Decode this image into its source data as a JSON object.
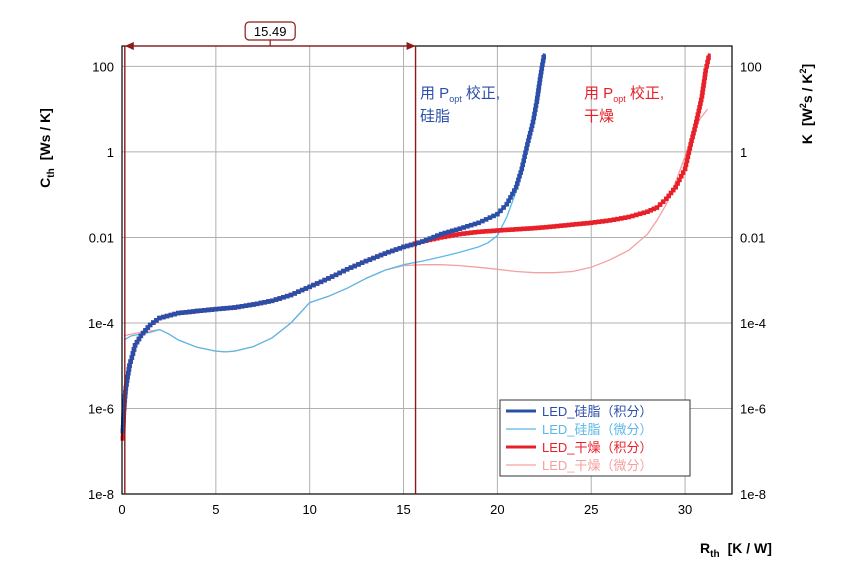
{
  "chart_data": {
    "type": "line",
    "title": "",
    "xlabel": {
      "main": "R",
      "sub": "th",
      "unit": "[K / W]"
    },
    "ylabel_left": {
      "main": "C",
      "sub": "th",
      "unit": "[Ws / K]"
    },
    "ylabel_right": {
      "main": "K",
      "unit_pre": "[W",
      "sup1": "2",
      "mid": "s / K",
      "sup2": "2",
      "post": "]"
    },
    "xlim": [
      0,
      32.5
    ],
    "ylim": [
      1e-08,
      300
    ],
    "y_scale": "log",
    "grid": true,
    "x_ticks": [
      "0",
      "5",
      "10",
      "15",
      "20",
      "25",
      "30"
    ],
    "x_tick_values": [
      0,
      5,
      10,
      15,
      20,
      25,
      30
    ],
    "y_ticks": [
      "1e-8",
      "1e-6",
      "1e-4",
      "0.01",
      "1",
      "100"
    ],
    "y_tick_values": [
      1e-08,
      1e-06,
      0.0001,
      0.01,
      1,
      100
    ],
    "legend_position": "bottom-right",
    "series": [
      {
        "name": "LED_硅脂（积分）",
        "color": "#2b4fa8",
        "style": "thick-markers",
        "x": [
          0.05,
          0.1,
          0.2,
          0.4,
          0.7,
          1.0,
          1.5,
          2.0,
          3.0,
          4.0,
          5.0,
          6.0,
          7.0,
          8.0,
          9.0,
          10.0,
          11.0,
          12.0,
          13.0,
          14.0,
          15.0,
          15.6,
          16.0,
          17.0,
          18.0,
          19.0,
          20.0,
          20.5,
          21.0,
          21.3,
          21.6,
          21.9,
          22.1,
          22.3,
          22.5
        ],
        "y": [
          3e-07,
          1e-06,
          3e-06,
          1e-05,
          3e-05,
          5e-05,
          9e-05,
          0.00013,
          0.00017,
          0.00019,
          0.00021,
          0.00023,
          0.00027,
          0.00033,
          0.00045,
          0.0007,
          0.0011,
          0.0018,
          0.0028,
          0.0042,
          0.006,
          0.007,
          0.008,
          0.012,
          0.016,
          0.022,
          0.035,
          0.06,
          0.15,
          0.4,
          1.5,
          5,
          15,
          60,
          200
        ]
      },
      {
        "name": "LED_硅脂（微分）",
        "color": "#5bb8e8",
        "style": "thin",
        "x": [
          0.1,
          0.5,
          1.0,
          1.5,
          2.0,
          2.5,
          3.0,
          4.0,
          5.0,
          5.5,
          6.0,
          7.0,
          8.0,
          9.0,
          10.0,
          11.0,
          12.0,
          13.0,
          14.0,
          15.0,
          16.0,
          17.0,
          18.0,
          19.0,
          19.5,
          20.0,
          20.5,
          21.0,
          21.3,
          21.6,
          22.0,
          22.3
        ],
        "y": [
          4e-05,
          5e-05,
          5.5e-05,
          6e-05,
          7e-05,
          5.5e-05,
          4e-05,
          2.7e-05,
          2.2e-05,
          2.1e-05,
          2.2e-05,
          2.8e-05,
          4.5e-05,
          0.0001,
          0.0003,
          0.00042,
          0.00065,
          0.0011,
          0.0017,
          0.0023,
          0.0028,
          0.0035,
          0.0045,
          0.006,
          0.0075,
          0.011,
          0.03,
          0.12,
          0.4,
          1.5,
          8,
          30
        ]
      },
      {
        "name": "LED_干燥（积分）",
        "color": "#e8202a",
        "style": "thick-markers",
        "x": [
          0.05,
          0.1,
          0.2,
          0.4,
          0.7,
          1.0,
          1.5,
          2.0,
          3.0,
          4.0,
          5.0,
          6.0,
          7.0,
          8.0,
          9.0,
          10.0,
          11.0,
          12.0,
          13.0,
          14.0,
          15.0,
          16.0,
          17.0,
          18.0,
          19.0,
          20.0,
          21.0,
          22.0,
          23.0,
          24.0,
          25.0,
          26.0,
          27.0,
          28.0,
          28.5,
          29.0,
          29.5,
          30.0,
          30.3,
          30.6,
          30.9,
          31.1,
          31.3
        ],
        "y": [
          2e-07,
          8e-07,
          3e-06,
          1e-05,
          3e-05,
          5e-05,
          9e-05,
          0.00013,
          0.00017,
          0.00019,
          0.00021,
          0.00023,
          0.00027,
          0.00033,
          0.00045,
          0.0007,
          0.0011,
          0.0018,
          0.0028,
          0.0042,
          0.006,
          0.008,
          0.01,
          0.012,
          0.0135,
          0.0145,
          0.0155,
          0.0165,
          0.018,
          0.02,
          0.022,
          0.025,
          0.03,
          0.04,
          0.05,
          0.08,
          0.15,
          0.4,
          1.5,
          5,
          20,
          80,
          200
        ]
      },
      {
        "name": "LED_干燥（微分）",
        "color": "#f4a0a0",
        "style": "thin",
        "x": [
          0.1,
          0.5,
          1.0,
          1.5,
          2.0,
          2.5,
          3.0,
          4.0,
          5.0,
          5.5,
          6.0,
          7.0,
          8.0,
          9.0,
          10.0,
          11.0,
          12.0,
          13.0,
          14.0,
          15.0,
          16.0,
          17.0,
          18.0,
          19.0,
          20.0,
          21.0,
          22.0,
          23.0,
          24.0,
          25.0,
          26.0,
          27.0,
          28.0,
          28.5,
          29.0,
          29.5,
          30.0,
          30.4,
          30.8,
          31.2
        ],
        "y": [
          5e-05,
          5.5e-05,
          6e-05,
          6.5e-05,
          7e-05,
          5.5e-05,
          4e-05,
          2.7e-05,
          2.2e-05,
          2.1e-05,
          2.2e-05,
          2.8e-05,
          4.5e-05,
          0.0001,
          0.0003,
          0.00042,
          0.00065,
          0.0011,
          0.0017,
          0.0022,
          0.0023,
          0.0023,
          0.0022,
          0.002,
          0.0018,
          0.0016,
          0.0015,
          0.0015,
          0.0016,
          0.002,
          0.003,
          0.005,
          0.012,
          0.025,
          0.06,
          0.2,
          0.8,
          2.5,
          6,
          10
        ]
      }
    ],
    "vertical_markers": [
      0.15,
      15.64
    ],
    "dimension_label": "15.49",
    "annotations": [
      {
        "color": "#2b4fa8",
        "line1_pre": "用 P",
        "line1_sub": "opt",
        "line1_post": " 校正,",
        "line2": "硅脂"
      },
      {
        "color": "#e8202a",
        "line1_pre": "用 P",
        "line1_sub": "opt",
        "line1_post": " 校正,",
        "line2": "干燥"
      }
    ]
  }
}
